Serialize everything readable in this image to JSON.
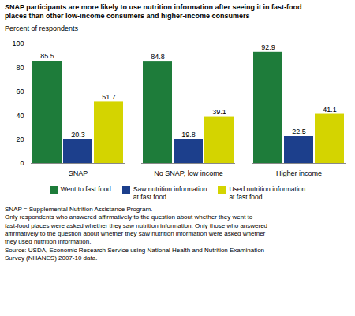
{
  "chart_data": {
    "type": "bar",
    "title": "SNAP participants are more likely to use nutrition information after seeing it in fast-food\nplaces than other low-income consumers and higher-income consumers",
    "ylabel": "Percent of respondents",
    "categories": [
      "SNAP",
      "No SNAP, low income",
      "Higher income"
    ],
    "series": [
      {
        "name": "Went to fast food",
        "color": "#1e7c3a",
        "values": [
          85.5,
          84.8,
          92.9
        ]
      },
      {
        "name": "Saw nutrition information\nat fast food",
        "color": "#1c3f8c",
        "values": [
          20.3,
          19.8,
          22.5
        ]
      },
      {
        "name": "Used nutrition information\nat fast food",
        "color": "#d4d400",
        "values": [
          51.7,
          39.1,
          41.1
        ]
      }
    ],
    "ylim": [
      0,
      100
    ],
    "yticks": [
      0,
      20,
      40,
      60,
      80,
      100
    ],
    "grid": false,
    "legend": "bottom",
    "data_labels": true,
    "annotations": [
      "SNAP = Supplemental Nutrition Assistance Program.",
      "Only respondents who answered affirmatively to the question about whether they went to",
      "fast-food places were asked whether they saw nutrition information. Only those who answered",
      "affirmatively to the question about whether they saw nutrition information were asked whether",
      "they used nutrition information.",
      "Source: USDA, Economic Research Service using National Health and Nutrition Examination",
      "Survey (NHANES) 2007-10 data."
    ]
  }
}
